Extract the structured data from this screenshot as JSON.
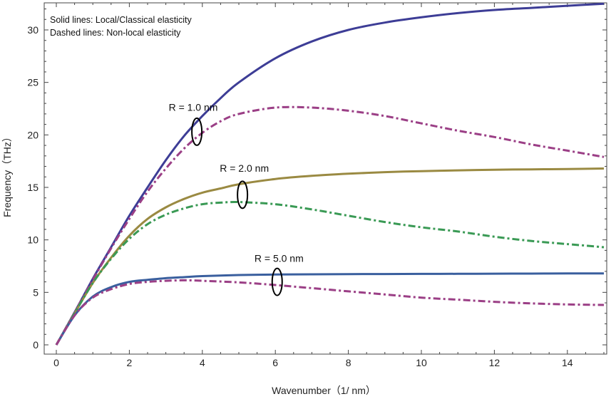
{
  "chart_data": {
    "type": "line",
    "xlabel": "Wavenumber（1/ nm）",
    "ylabel": "Frequency（THz）",
    "xlim": [
      0,
      15
    ],
    "ylim": [
      0,
      32.5
    ],
    "x_ticks": [
      0,
      2,
      4,
      6,
      8,
      10,
      12,
      14
    ],
    "y_ticks": [
      0,
      5,
      10,
      15,
      20,
      25,
      30
    ],
    "grid": false,
    "legend_notes": [
      "Solid lines: Local/Classical elasticity",
      "Dashed lines: Non-local elasticity"
    ],
    "annotations": [
      {
        "text": "R = 1.0 nm",
        "x": 3.75,
        "y": 22.3,
        "ellipse": {
          "x": 3.85,
          "y": 20.3
        }
      },
      {
        "text": "R = 2.0 nm",
        "x": 5.15,
        "y": 16.5,
        "ellipse": {
          "x": 5.1,
          "y": 14.3
        }
      },
      {
        "text": "R = 5.0 nm",
        "x": 6.1,
        "y": 7.9,
        "ellipse": {
          "x": 6.05,
          "y": 6.0
        }
      }
    ],
    "series": [
      {
        "style": "solid",
        "color": "#3d3d96",
        "x": [
          0,
          0.5,
          1,
          1.5,
          2,
          2.5,
          3,
          3.5,
          4,
          4.5,
          5,
          6,
          7,
          8,
          9,
          10,
          11,
          12,
          13,
          14,
          15
        ],
        "y": [
          0,
          3.1,
          6.3,
          9.3,
          12.3,
          15.0,
          17.6,
          19.9,
          21.8,
          23.5,
          25.0,
          27.3,
          28.9,
          30.0,
          30.7,
          31.2,
          31.6,
          31.9,
          32.1,
          32.3,
          32.5
        ]
      },
      {
        "style": "dashdot",
        "color": "#9b3f86",
        "x": [
          0,
          0.5,
          1,
          1.5,
          2,
          2.5,
          3,
          3.5,
          4,
          4.5,
          5,
          6,
          7,
          8,
          9,
          10,
          11,
          12,
          13,
          14,
          15
        ],
        "y": [
          0,
          3.1,
          6.2,
          9.2,
          12.0,
          14.6,
          16.8,
          18.7,
          20.2,
          21.3,
          22.0,
          22.6,
          22.6,
          22.3,
          21.8,
          21.1,
          20.4,
          19.8,
          19.1,
          18.5,
          17.9
        ]
      },
      {
        "style": "solid",
        "color": "#9a8a42",
        "x": [
          0,
          0.5,
          1,
          1.5,
          2,
          2.5,
          3,
          3.5,
          4,
          4.5,
          5,
          6,
          7,
          8,
          9,
          10,
          11,
          12,
          13,
          14,
          15
        ],
        "y": [
          0,
          3.0,
          5.9,
          8.3,
          10.4,
          12.0,
          13.1,
          13.9,
          14.5,
          14.9,
          15.3,
          15.8,
          16.1,
          16.3,
          16.45,
          16.55,
          16.62,
          16.68,
          16.72,
          16.75,
          16.8
        ]
      },
      {
        "style": "dashdot",
        "color": "#3a9a55",
        "x": [
          0,
          0.5,
          1,
          1.5,
          2,
          2.5,
          3,
          3.5,
          4,
          4.5,
          5,
          6,
          7,
          8,
          9,
          10,
          11,
          12,
          13,
          14,
          15
        ],
        "y": [
          0,
          3.0,
          5.9,
          8.2,
          10.1,
          11.5,
          12.4,
          13.0,
          13.4,
          13.55,
          13.6,
          13.4,
          12.9,
          12.3,
          11.7,
          11.2,
          10.8,
          10.3,
          9.9,
          9.6,
          9.3
        ]
      },
      {
        "style": "solid",
        "color": "#3a5f9e",
        "x": [
          0,
          0.5,
          1,
          1.5,
          2,
          2.5,
          3,
          3.5,
          4,
          5,
          6,
          7,
          8,
          9,
          10,
          11,
          12,
          13,
          14,
          15
        ],
        "y": [
          0,
          2.8,
          4.6,
          5.5,
          6.0,
          6.2,
          6.35,
          6.45,
          6.55,
          6.65,
          6.7,
          6.72,
          6.74,
          6.75,
          6.76,
          6.77,
          6.78,
          6.79,
          6.8,
          6.8
        ]
      },
      {
        "style": "dashdot",
        "color": "#9b3f86",
        "x": [
          0,
          0.5,
          1,
          1.5,
          2,
          2.5,
          3,
          3.5,
          4,
          5,
          6,
          7,
          8,
          9,
          10,
          11,
          12,
          13,
          14,
          15
        ],
        "y": [
          0,
          2.8,
          4.5,
          5.3,
          5.8,
          6.0,
          6.1,
          6.15,
          6.1,
          5.95,
          5.7,
          5.4,
          5.1,
          4.8,
          4.5,
          4.3,
          4.1,
          3.95,
          3.85,
          3.8
        ]
      }
    ]
  }
}
